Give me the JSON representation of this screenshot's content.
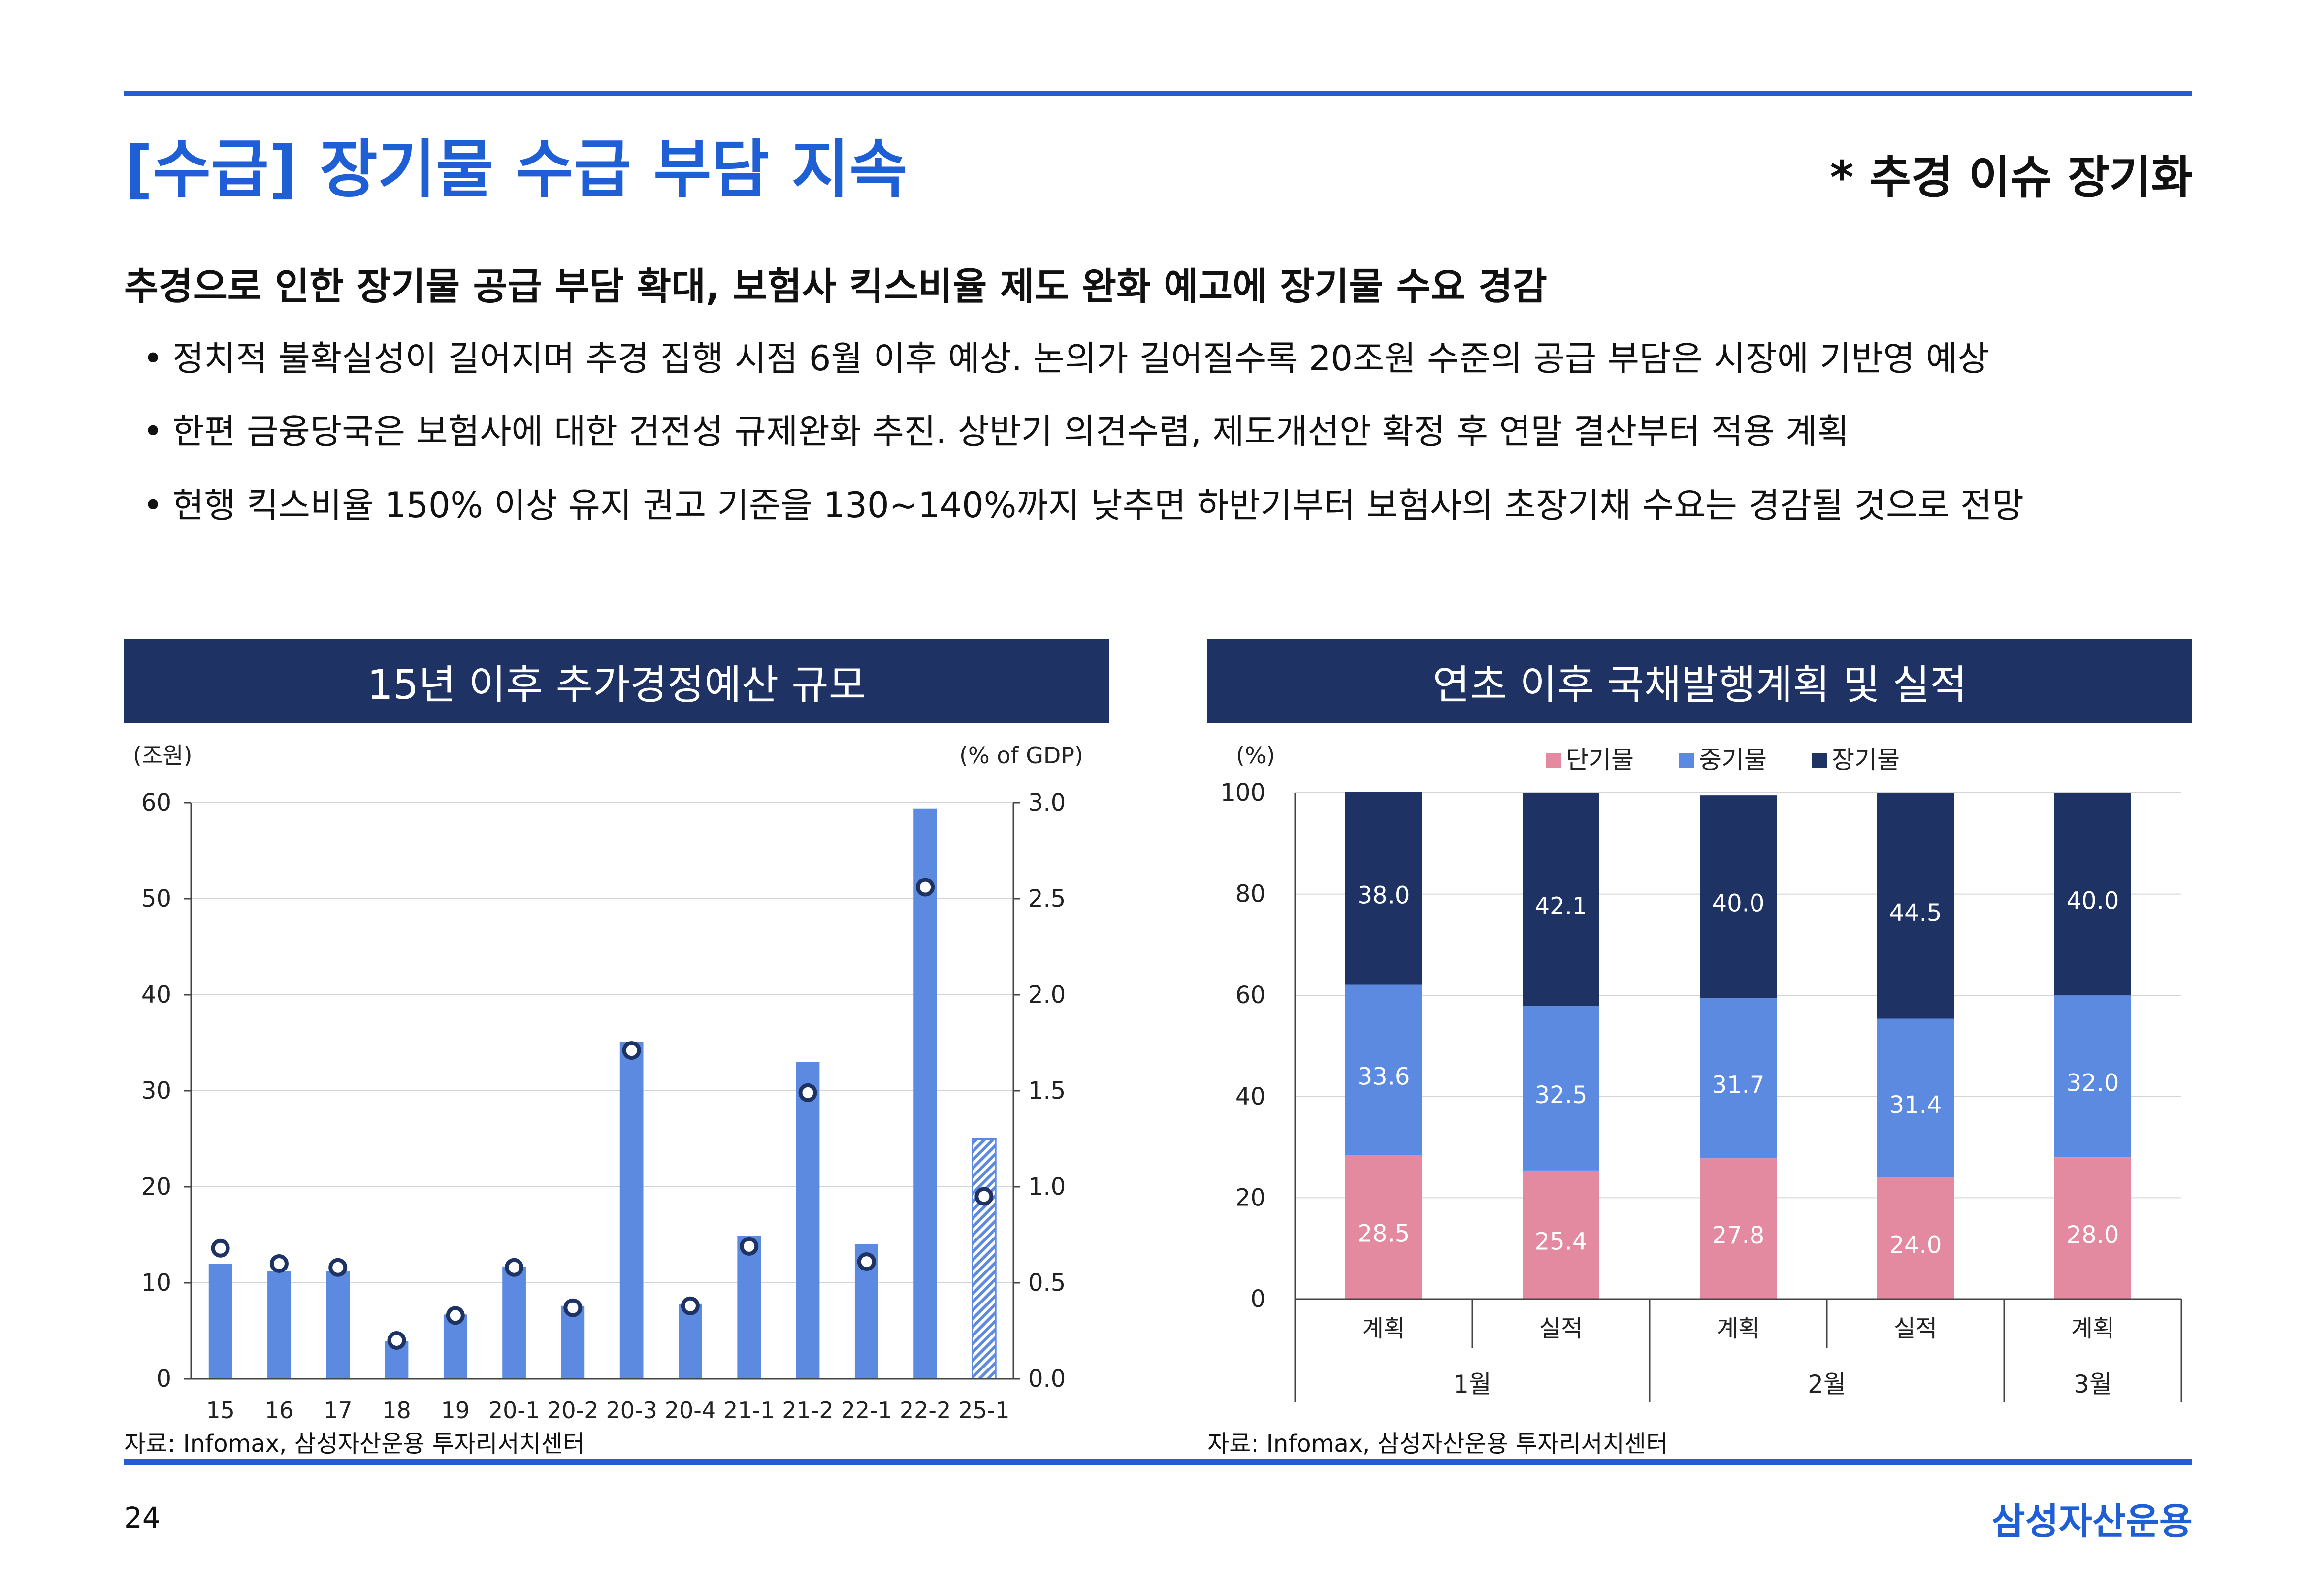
{
  "title": "[수급] 장기물 수급 부담 지속",
  "side_note": "* 추경 이슈 장기화",
  "headline": "추경으로 인한 장기물 공급 부담 확대, 보험사 킥스비율 제도 완화 예고에 장기물 수요 경감",
  "bullet_symbol": "•",
  "bullets": [
    "정치적 불확실성이 길어지며 추경 집행 시점 6월 이후 예상. 논의가 길어질수록 20조원 수준의 공급 부담은 시장에 기반영 예상",
    "한편 금융당국은 보험사에 대한 건전성 규제완화 추진. 상반기 의견수렴, 제도개선안 확정 후 연말 결산부터 적용 계획",
    "현행 킥스비율 150% 이상 유지 권고 기준을 130~140%까지 낮추면 하반기부터 보험사의 초장기채 수요는 경감될 것으로 전망"
  ],
  "left_panel": {
    "header": "15년 이후 추가경정예산 규모",
    "source": "자료: Infomax, 삼성자산운용 투자리서치센터"
  },
  "right_panel": {
    "header": "연초 이후 국채발행계획 및 실적",
    "source": "자료: Infomax, 삼성자산운용 투자리서치센터"
  },
  "page_number": "24",
  "company": "삼성자산운용",
  "colors": {
    "accent": "#1f5fd6",
    "header_bg": "#1f3264",
    "bar_blue": "#5b8ae0",
    "short_term": "#e48aa0",
    "mid_term": "#5b8ae0",
    "long_term": "#1f3264"
  },
  "chart_data": [
    {
      "type": "bar",
      "title": "15년 이후 추가경정예산 규모",
      "ylabel": "(조원)",
      "y2label": "(% of GDP)",
      "categories": [
        "15",
        "16",
        "17",
        "18",
        "19",
        "20-1",
        "20-2",
        "20-3",
        "20-4",
        "21-1",
        "21-2",
        "22-1",
        "22-2",
        "25-1"
      ],
      "ylim": [
        0,
        60
      ],
      "y2lim": [
        0.0,
        3.0
      ],
      "yticks": [
        "0",
        "10",
        "20",
        "30",
        "40",
        "50",
        "60"
      ],
      "y2ticks": [
        "0.0",
        "0.5",
        "1.0",
        "1.5",
        "2.0",
        "2.5",
        "3.0"
      ],
      "grid": true,
      "series": [
        {
          "kind": "bar",
          "axis": "left",
          "values": [
            12.0,
            11.2,
            11.2,
            3.9,
            6.7,
            11.7,
            7.6,
            35.1,
            7.8,
            14.9,
            33.0,
            14.0,
            59.4,
            25.0
          ],
          "hatched_last": true
        },
        {
          "kind": "marker",
          "axis": "right",
          "values": [
            0.68,
            0.6,
            0.58,
            0.2,
            0.33,
            0.58,
            0.37,
            1.71,
            0.38,
            0.69,
            1.49,
            0.61,
            2.56,
            0.95
          ]
        }
      ]
    },
    {
      "type": "bar",
      "stacked": true,
      "title": "연초 이후 국채발행계획 및 실적",
      "ylabel": "(%)",
      "ylim": [
        0,
        100
      ],
      "yticks": [
        "0",
        "20",
        "40",
        "60",
        "80",
        "100"
      ],
      "legend_position": "top",
      "categories": [
        "계획",
        "실적",
        "계획",
        "실적",
        "계획"
      ],
      "groups": [
        {
          "label": "1월",
          "span": 2
        },
        {
          "label": "2월",
          "span": 2
        },
        {
          "label": "3월",
          "span": 1
        }
      ],
      "series": [
        {
          "name": "단기물",
          "values": [
            28.5,
            25.4,
            27.8,
            24.0,
            28.0
          ]
        },
        {
          "name": "중기물",
          "values": [
            33.6,
            32.5,
            31.7,
            31.4,
            32.0
          ]
        },
        {
          "name": "장기물",
          "values": [
            38.0,
            42.1,
            40.0,
            44.5,
            40.0
          ]
        }
      ]
    }
  ]
}
